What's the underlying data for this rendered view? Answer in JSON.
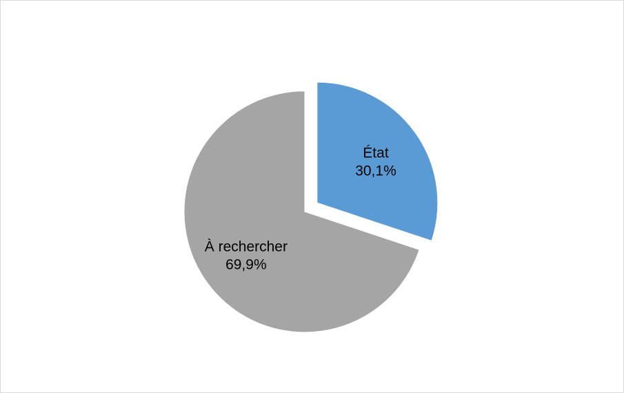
{
  "chart_data": {
    "type": "pie",
    "title": "",
    "start_angle_deg": 0,
    "direction": "clockwise",
    "slices": [
      {
        "label": "État",
        "value": 30.1,
        "value_label": "30,1%",
        "color": "#5b9bd5",
        "exploded": true
      },
      {
        "label": "À rechercher",
        "value": 69.9,
        "value_label": "69,9%",
        "color": "#a5a5a5",
        "exploded": false
      }
    ],
    "legend": "none"
  }
}
